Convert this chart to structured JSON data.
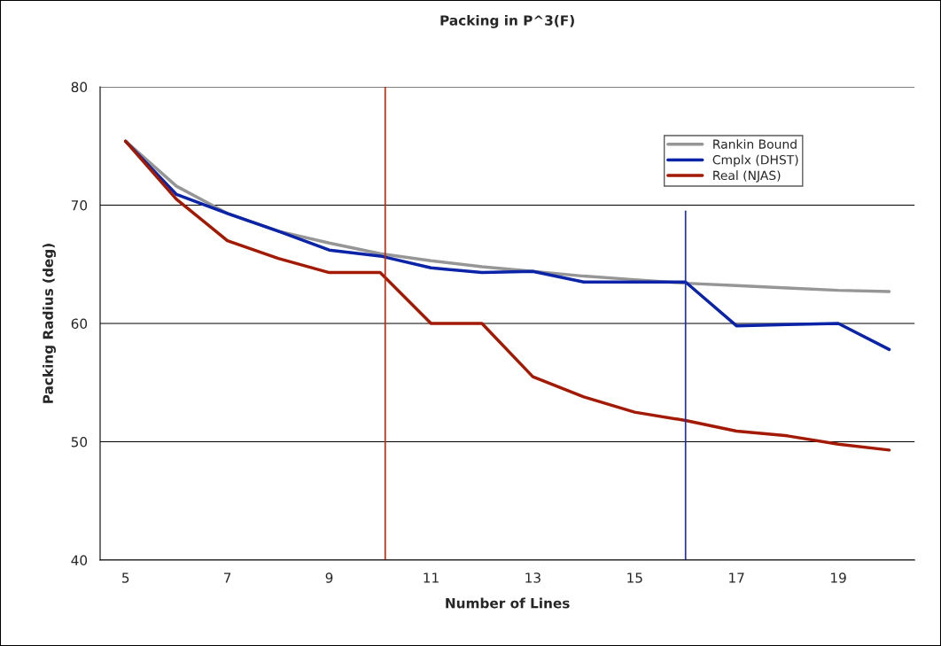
{
  "chart_data": {
    "type": "line",
    "title": "Packing in P^3(F)",
    "xlabel": "Number of Lines",
    "ylabel": "Packing Radius (deg)",
    "x": [
      5,
      6,
      7,
      8,
      9,
      10,
      11,
      12,
      13,
      14,
      15,
      16,
      17,
      18,
      19,
      20
    ],
    "series": [
      {
        "name": "Rankin Bound",
        "color": "#969696",
        "values": [
          75.4,
          71.6,
          69.3,
          67.8,
          66.8,
          65.9,
          65.3,
          64.8,
          64.4,
          64.0,
          63.7,
          63.4,
          63.2,
          63.0,
          62.8,
          62.7
        ]
      },
      {
        "name": "Cmplx (DHST)",
        "color": "#0b23a6",
        "values": [
          75.4,
          70.9,
          69.3,
          67.8,
          66.2,
          65.7,
          64.7,
          64.3,
          64.4,
          63.5,
          63.5,
          63.5,
          59.8,
          59.9,
          60.0,
          57.8
        ]
      },
      {
        "name": "Real (NJAS)",
        "color": "#a31a04",
        "values": [
          75.4,
          70.5,
          67.0,
          65.5,
          64.3,
          64.3,
          60.0,
          60.0,
          55.5,
          53.8,
          52.5,
          51.8,
          50.9,
          50.5,
          49.8,
          49.3
        ]
      }
    ],
    "xlim": [
      4.5,
      20.5
    ],
    "xticks": [
      5,
      7,
      9,
      11,
      13,
      15,
      17,
      19
    ],
    "ylim": [
      40,
      80
    ],
    "yticks": [
      40,
      50,
      60,
      70,
      80
    ],
    "ref_lines": [
      {
        "axis": "x",
        "value": 10.1,
        "color": "#c0280c"
      },
      {
        "axis": "x",
        "value": 16.0,
        "color": "#1a2fc0"
      }
    ],
    "grid": "y",
    "legend": "top right",
    "marker": "none",
    "line_style": "solid"
  }
}
